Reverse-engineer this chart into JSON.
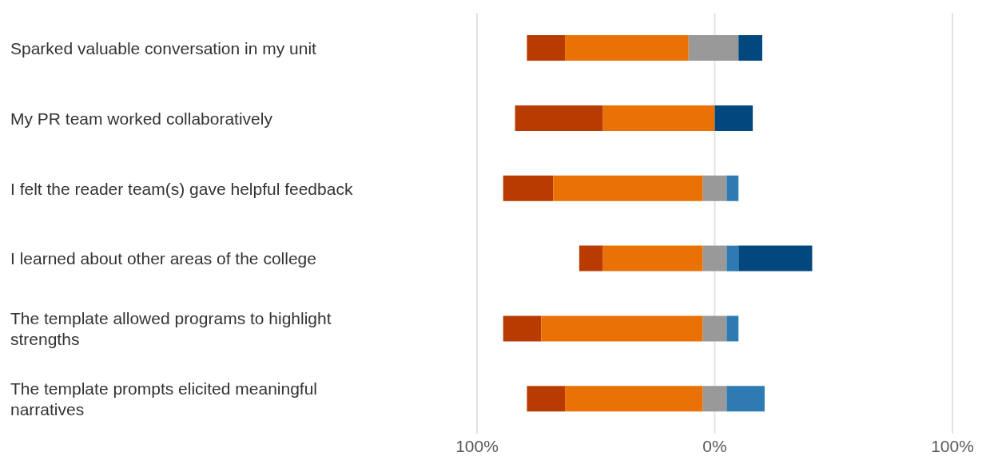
{
  "chart_data": {
    "type": "bar",
    "orientation": "horizontal",
    "categories": [
      "Sparked valuable conversation in my unit",
      "My PR team worked collaboratively",
      "I felt the reader team(s) gave helpful feedback",
      "I learned about other areas of the college",
      "The template allowed programs to highlight strengths",
      "The template prompts elicited meaningful narratives"
    ],
    "series": [
      {
        "color": "#b83c02",
        "base": [
          -79,
          -84,
          -89,
          -57,
          -89,
          -79
        ],
        "values": [
          16,
          37,
          21,
          10,
          16,
          16
        ]
      },
      {
        "color": "#e97105",
        "base": [
          -63,
          -47,
          -68,
          -47,
          -73,
          -63
        ],
        "values": [
          52,
          47,
          63,
          42,
          68,
          58
        ]
      },
      {
        "color": "#999999",
        "base": [
          -11,
          null,
          -5,
          -5,
          -5,
          -5
        ],
        "values": [
          21,
          null,
          10,
          10,
          10,
          10
        ]
      },
      {
        "color": "#2e7bb4",
        "base": [
          null,
          null,
          5,
          5,
          5,
          5
        ],
        "values": [
          null,
          null,
          5,
          5,
          5,
          16
        ]
      },
      {
        "color": "#02487f",
        "base": [
          10,
          0,
          null,
          10,
          null,
          null
        ],
        "values": [
          10,
          16,
          null,
          31,
          null,
          null
        ]
      }
    ],
    "xlim": [
      -100,
      100
    ],
    "xticks": [
      {
        "value": -100,
        "label": "100%"
      },
      {
        "value": 0,
        "label": "0%"
      },
      {
        "value": 100,
        "label": "100%"
      }
    ],
    "grid": "x"
  }
}
